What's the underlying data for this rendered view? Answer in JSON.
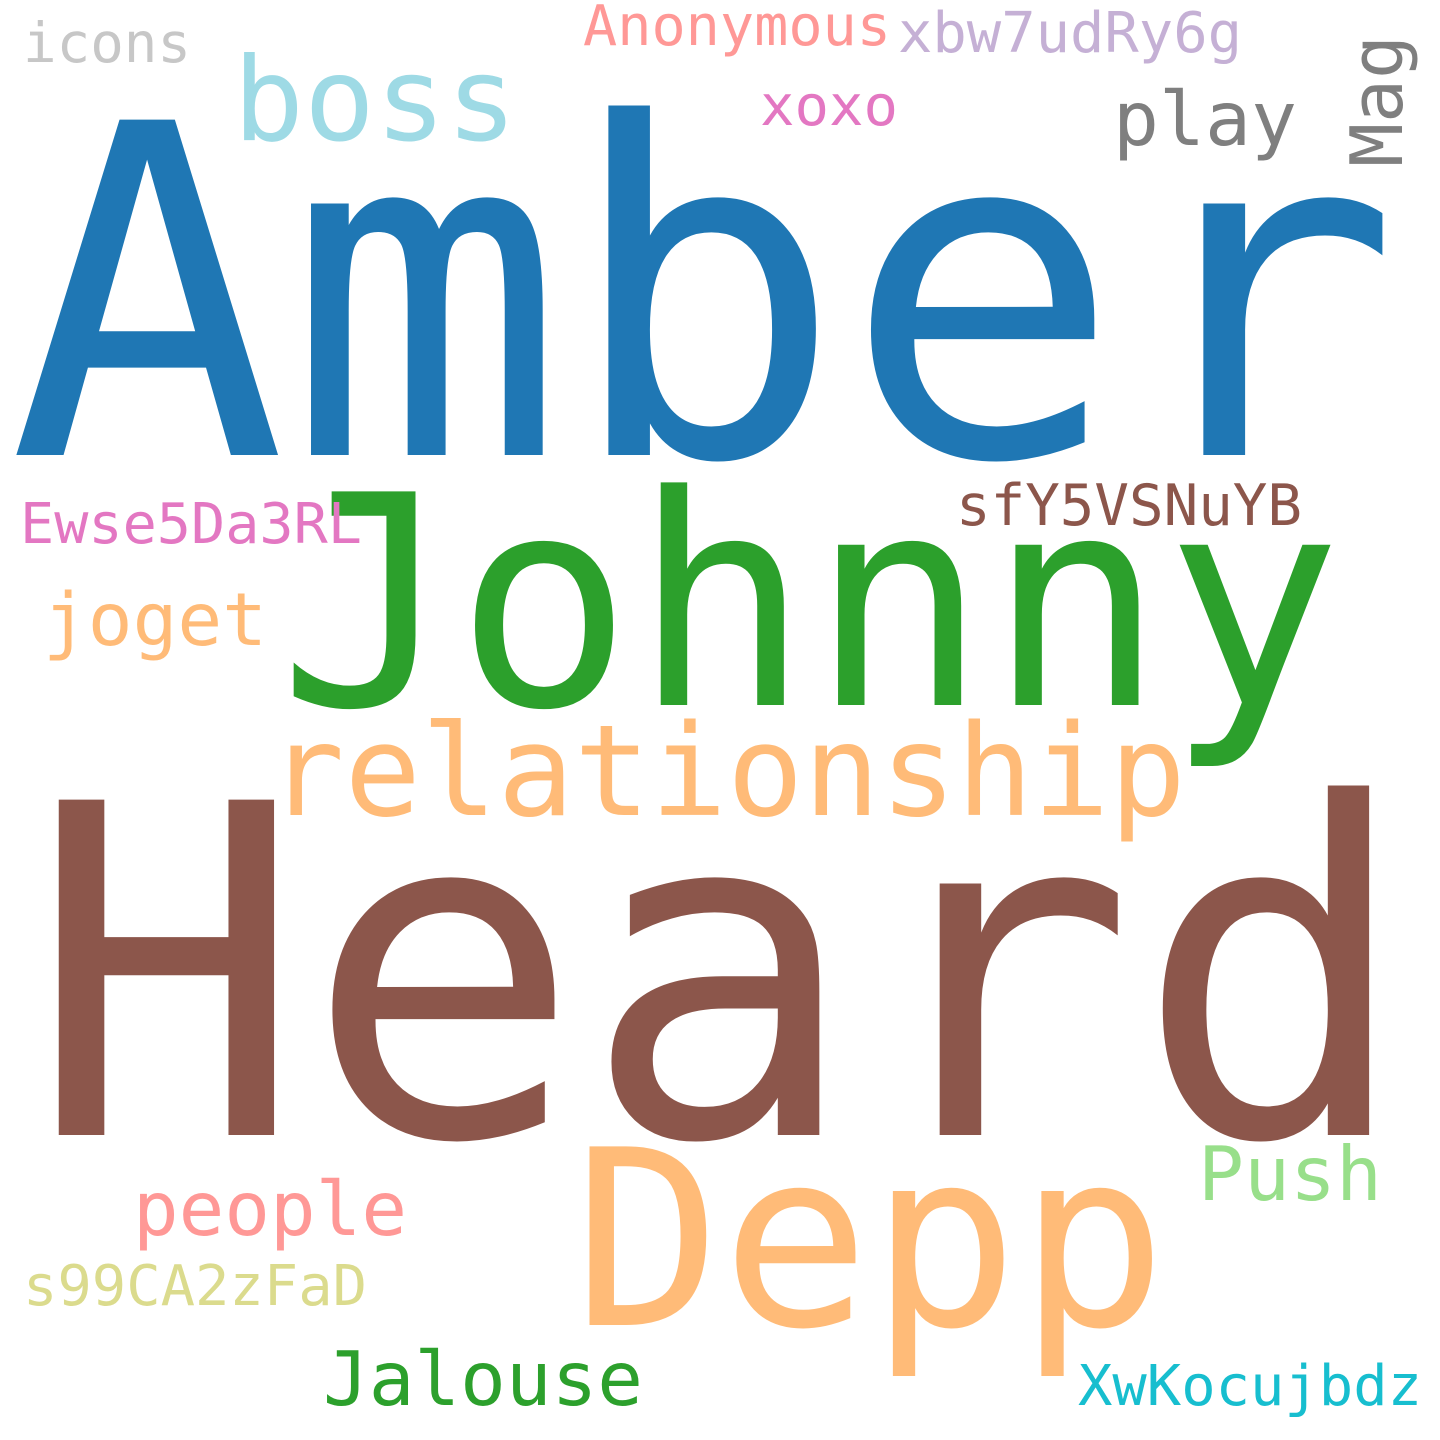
{
  "words": [
    {
      "text": "Amber",
      "color": "#1f77b4"
    },
    {
      "text": "Heard",
      "color": "#8c564b"
    },
    {
      "text": "Johnny",
      "color": "#2ca02c"
    },
    {
      "text": "Depp",
      "color": "#ffbb78"
    },
    {
      "text": "relationship",
      "color": "#ffbb78"
    },
    {
      "text": "boss",
      "color": "#9edae5"
    },
    {
      "text": "play",
      "color": "#7f7f7f"
    },
    {
      "text": "Mag",
      "color": "#7f7f7f"
    },
    {
      "text": "Anonymous",
      "color": "#ff9896"
    },
    {
      "text": "xbw7udRy6g",
      "color": "#c5b0d5"
    },
    {
      "text": "icons",
      "color": "#c7c7c7"
    },
    {
      "text": "xoxo",
      "color": "#e377c2"
    },
    {
      "text": "sfY5VSNuYB",
      "color": "#8c564b"
    },
    {
      "text": "Ewse5Da3RL",
      "color": "#e377c2"
    },
    {
      "text": "joget",
      "color": "#ffbb78"
    },
    {
      "text": "Push",
      "color": "#98df8a"
    },
    {
      "text": "people",
      "color": "#ff9896"
    },
    {
      "text": "s99CA2zFaD",
      "color": "#dbdb8d"
    },
    {
      "text": "Jalouse",
      "color": "#2ca02c"
    },
    {
      "text": "XwKocujbdz",
      "color": "#17becf"
    }
  ]
}
